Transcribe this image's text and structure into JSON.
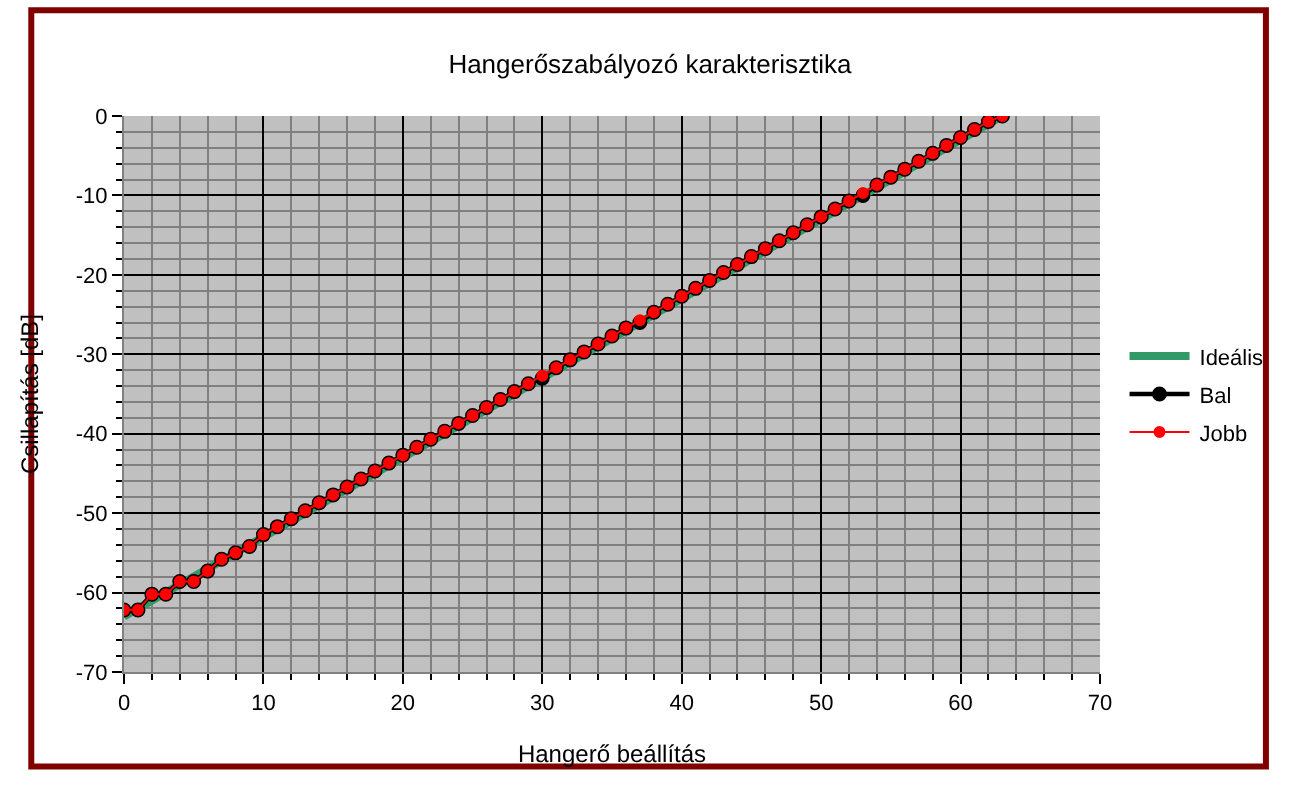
{
  "chart_data": {
    "type": "line",
    "title": "Hangerőszabályozó karakterisztika",
    "xlabel": "Hangerő beállítás",
    "ylabel": "Csillapítás [dB]",
    "xlim": [
      0,
      70
    ],
    "xticks": [
      0,
      10,
      20,
      30,
      40,
      50,
      60,
      70
    ],
    "ylim": [
      -70,
      0
    ],
    "yticks": [
      -70,
      -60,
      -50,
      -40,
      -30,
      -20,
      -10,
      0
    ],
    "grid": true,
    "legend": "right",
    "marker": "circle",
    "line_style": "solid",
    "series": [
      {
        "name": "Ideális",
        "color": "#339966",
        "x": [
          0,
          63
        ],
        "values": [
          -63,
          0
        ],
        "marker": "none"
      },
      {
        "name": "Bal",
        "color": "#000000",
        "x": [
          0,
          1,
          2,
          3,
          4,
          5,
          6,
          7,
          8,
          9,
          10,
          11,
          12,
          13,
          14,
          15,
          16,
          17,
          18,
          19,
          20,
          21,
          22,
          23,
          24,
          25,
          26,
          27,
          28,
          29,
          30,
          31,
          32,
          33,
          34,
          35,
          36,
          37,
          38,
          39,
          40,
          41,
          42,
          43,
          44,
          45,
          46,
          47,
          48,
          49,
          50,
          51,
          52,
          53,
          54,
          55,
          56,
          57,
          58,
          59,
          60,
          61,
          62,
          63
        ],
        "values": [
          -62.2,
          -62.2,
          -60.2,
          -60.2,
          -58.6,
          -58.6,
          -57.3,
          -55.8,
          -55,
          -54.2,
          -52.7,
          -51.7,
          -50.7,
          -49.7,
          -48.7,
          -47.7,
          -46.7,
          -45.7,
          -44.7,
          -43.7,
          -42.7,
          -41.7,
          -40.7,
          -39.7,
          -38.7,
          -37.7,
          -36.7,
          -35.7,
          -34.7,
          -33.7,
          -33,
          -31.7,
          -30.7,
          -29.7,
          -28.7,
          -27.7,
          -26.7,
          -26,
          -24.7,
          -23.7,
          -22.7,
          -21.7,
          -20.7,
          -19.7,
          -18.7,
          -17.7,
          -16.7,
          -15.7,
          -14.7,
          -13.7,
          -12.7,
          -11.7,
          -10.7,
          -10,
          -8.7,
          -7.7,
          -6.7,
          -5.7,
          -4.7,
          -3.7,
          -2.7,
          -1.7,
          -0.7,
          0
        ]
      },
      {
        "name": "Jobb",
        "color": "#ff0000",
        "x": [
          0,
          1,
          2,
          3,
          4,
          5,
          6,
          7,
          8,
          9,
          10,
          11,
          12,
          13,
          14,
          15,
          16,
          17,
          18,
          19,
          20,
          21,
          22,
          23,
          24,
          25,
          26,
          27,
          28,
          29,
          30,
          31,
          32,
          33,
          34,
          35,
          36,
          37,
          38,
          39,
          40,
          41,
          42,
          43,
          44,
          45,
          46,
          47,
          48,
          49,
          50,
          51,
          52,
          53,
          54,
          55,
          56,
          57,
          58,
          59,
          60,
          61,
          62,
          63
        ],
        "values": [
          -62.2,
          -62.2,
          -60.2,
          -60.2,
          -58.6,
          -58.6,
          -57.3,
          -55.8,
          -55,
          -54.2,
          -52.7,
          -51.7,
          -50.7,
          -49.7,
          -48.7,
          -47.7,
          -46.7,
          -45.7,
          -44.7,
          -43.7,
          -42.7,
          -41.7,
          -40.7,
          -39.7,
          -38.7,
          -37.7,
          -36.7,
          -35.7,
          -34.7,
          -33.7,
          -32.7,
          -31.7,
          -30.7,
          -29.7,
          -28.7,
          -27.7,
          -26.7,
          -25.7,
          -24.7,
          -23.7,
          -22.7,
          -21.7,
          -20.7,
          -19.7,
          -18.7,
          -17.7,
          -16.7,
          -15.7,
          -14.7,
          -13.7,
          -12.7,
          -11.7,
          -10.7,
          -9.7,
          -8.7,
          -7.7,
          -6.7,
          -5.7,
          -4.7,
          -3.7,
          -2.7,
          -1.7,
          -0.7,
          0
        ]
      }
    ]
  }
}
